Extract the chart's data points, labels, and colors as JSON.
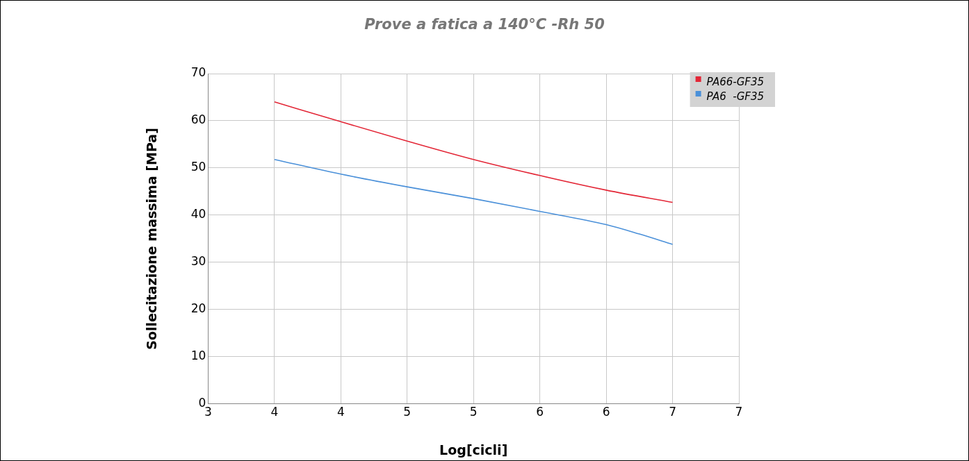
{
  "chart_data": {
    "type": "line",
    "title": "Prove a fatica a 140°C -Rh 50",
    "xlabel": "Log[cicli]",
    "ylabel": "Sollecitazione massima [MPa]",
    "series": [
      {
        "name": "PA66-GF35",
        "color": "#e32636",
        "x": [
          3.5,
          4.0,
          4.5,
          5.0,
          5.5,
          6.0,
          6.5
        ],
        "values": [
          64.0,
          59.8,
          55.7,
          51.8,
          48.4,
          45.3,
          42.7
        ]
      },
      {
        "name": "PA6  -GF35",
        "color": "#4a90d9",
        "x": [
          3.5,
          4.0,
          4.5,
          5.0,
          5.5,
          6.0,
          6.25,
          6.5
        ],
        "values": [
          51.8,
          48.7,
          46.0,
          43.5,
          40.8,
          38.0,
          36.0,
          33.8
        ]
      }
    ],
    "xlim": [
      3,
      7
    ],
    "xticks": [
      3,
      {
        "value": 3.5,
        "label": "4"
      },
      4,
      {
        "value": 4.5,
        "label": "5"
      },
      5,
      {
        "value": 5.5,
        "label": "6"
      },
      6,
      {
        "value": 6.5,
        "label": "7"
      },
      7
    ],
    "ylim": [
      0,
      70
    ],
    "yticks": [
      0,
      10,
      20,
      30,
      40,
      50,
      60,
      70
    ],
    "grid": true,
    "legend": "top right",
    "marker": "none",
    "line_style": "solid"
  }
}
